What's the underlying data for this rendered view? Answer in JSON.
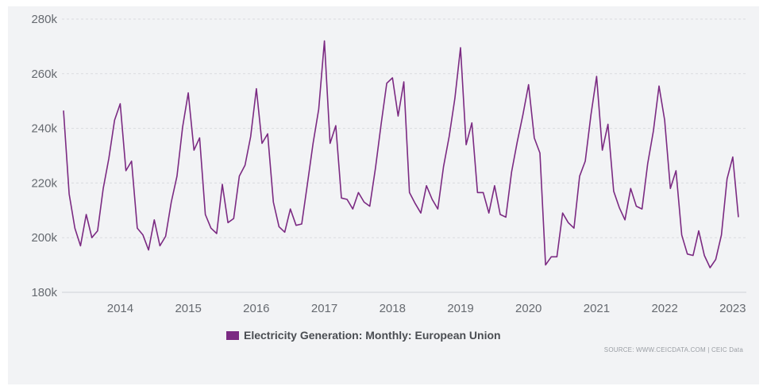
{
  "chart_data": {
    "type": "line",
    "title": "",
    "xlabel": "",
    "ylabel": "",
    "ylim": [
      180000,
      280000
    ],
    "y_ticks": [
      180000,
      200000,
      220000,
      240000,
      260000,
      280000
    ],
    "y_tick_labels": [
      "180k",
      "200k",
      "220k",
      "240k",
      "260k",
      "280k"
    ],
    "x_tick_labels": [
      "2014",
      "2015",
      "2016",
      "2017",
      "2018",
      "2019",
      "2020",
      "2021",
      "2022",
      "2023"
    ],
    "x_tick_values": [
      "2014-01",
      "2015-01",
      "2016-01",
      "2017-01",
      "2018-01",
      "2019-01",
      "2020-01",
      "2021-01",
      "2022-01",
      "2023-01"
    ],
    "x_range": [
      "2013-03",
      "2023-02"
    ],
    "grid": true,
    "legend_position": "bottom",
    "series": [
      {
        "name": "Electricity Generation: Monthly: European Union",
        "color": "#7b2a82",
        "x": [
          "2013-03",
          "2013-04",
          "2013-05",
          "2013-06",
          "2013-07",
          "2013-08",
          "2013-09",
          "2013-10",
          "2013-11",
          "2013-12",
          "2014-01",
          "2014-02",
          "2014-03",
          "2014-04",
          "2014-05",
          "2014-06",
          "2014-07",
          "2014-08",
          "2014-09",
          "2014-10",
          "2014-11",
          "2014-12",
          "2015-01",
          "2015-02",
          "2015-03",
          "2015-04",
          "2015-05",
          "2015-06",
          "2015-07",
          "2015-08",
          "2015-09",
          "2015-10",
          "2015-11",
          "2015-12",
          "2016-01",
          "2016-02",
          "2016-03",
          "2016-04",
          "2016-05",
          "2016-06",
          "2016-07",
          "2016-08",
          "2016-09",
          "2016-10",
          "2016-11",
          "2016-12",
          "2017-01",
          "2017-02",
          "2017-03",
          "2017-04",
          "2017-05",
          "2017-06",
          "2017-07",
          "2017-08",
          "2017-09",
          "2017-10",
          "2017-11",
          "2017-12",
          "2018-01",
          "2018-02",
          "2018-03",
          "2018-04",
          "2018-05",
          "2018-06",
          "2018-07",
          "2018-08",
          "2018-09",
          "2018-10",
          "2018-11",
          "2018-12",
          "2019-01",
          "2019-02",
          "2019-03",
          "2019-04",
          "2019-05",
          "2019-06",
          "2019-07",
          "2019-08",
          "2019-09",
          "2019-10",
          "2019-11",
          "2019-12",
          "2020-01",
          "2020-02",
          "2020-03",
          "2020-04",
          "2020-05",
          "2020-06",
          "2020-07",
          "2020-08",
          "2020-09",
          "2020-10",
          "2020-11",
          "2020-12",
          "2021-01",
          "2021-02",
          "2021-03",
          "2021-04",
          "2021-05",
          "2021-06",
          "2021-07",
          "2021-08",
          "2021-09",
          "2021-10",
          "2021-11",
          "2021-12",
          "2022-01",
          "2022-02",
          "2022-03",
          "2022-04",
          "2022-05",
          "2022-06",
          "2022-07",
          "2022-08",
          "2022-09",
          "2022-10",
          "2022-11",
          "2022-12",
          "2023-01",
          "2023-02"
        ],
        "values": [
          246500,
          216000,
          203500,
          197000,
          208500,
          200000,
          202500,
          218000,
          229000,
          243000,
          249000,
          224500,
          228000,
          203500,
          201000,
          195500,
          206500,
          197000,
          200500,
          213000,
          222500,
          240500,
          253000,
          232000,
          236500,
          208500,
          203500,
          201500,
          219500,
          205500,
          207000,
          222500,
          226500,
          237000,
          254500,
          234500,
          238000,
          213000,
          204000,
          202000,
          210500,
          204500,
          205000,
          219500,
          234500,
          247000,
          272000,
          234500,
          241000,
          214500,
          214000,
          210500,
          216500,
          213000,
          211500,
          225500,
          241500,
          256500,
          258500,
          244500,
          257000,
          216500,
          212500,
          209000,
          219000,
          214000,
          210500,
          226000,
          237000,
          251000,
          269500,
          234000,
          242000,
          216500,
          216500,
          209000,
          219000,
          208500,
          207500,
          224000,
          235000,
          245000,
          256000,
          236500,
          231000,
          190000,
          193000,
          193000,
          209000,
          205500,
          203500,
          222500,
          228000,
          245000,
          259000,
          232000,
          241500,
          217000,
          211000,
          206500,
          218000,
          211500,
          210500,
          227000,
          239000,
          255500,
          243000,
          218000,
          224500,
          201000,
          194000,
          193500,
          202500,
          193500,
          189000,
          192000,
          201000,
          221500,
          229500,
          207500
        ]
      }
    ]
  },
  "legend": {
    "label": "Electricity Generation: Monthly: European Union",
    "color": "#7b2a82"
  },
  "source": "SOURCE: WWW.CEICDATA.COM | CEIC Data"
}
